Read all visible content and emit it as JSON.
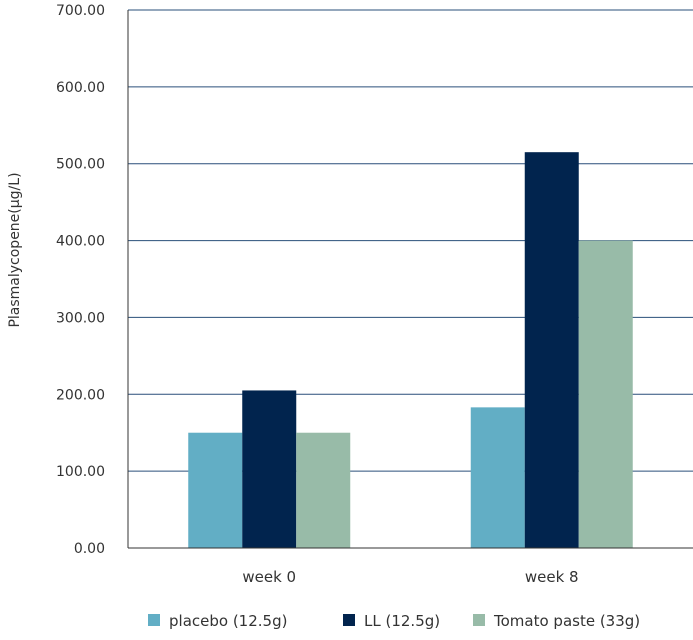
{
  "chart_data": {
    "type": "bar",
    "categories": [
      "week 0",
      "week 8"
    ],
    "series": [
      {
        "name": "placebo (12.5g)",
        "values": [
          150,
          183
        ],
        "color": "#62aec5"
      },
      {
        "name": "LL (12.5g)",
        "values": [
          205,
          515
        ],
        "color": "#01244e"
      },
      {
        "name": "Tomato paste (33g)",
        "values": [
          150,
          400
        ],
        "color": "#98bba8"
      }
    ],
    "title": "",
    "xlabel": "",
    "ylabel": "Plasmalycopene(μg/L)",
    "ylim": [
      0,
      700
    ],
    "yticks": [
      "0.00",
      "100.00",
      "200.00",
      "300.00",
      "400.00",
      "500.00",
      "600.00",
      "700.00"
    ],
    "ytick_values": [
      0,
      100,
      200,
      300,
      400,
      500,
      600,
      700
    ],
    "grid": true,
    "legend_position": "bottom"
  }
}
